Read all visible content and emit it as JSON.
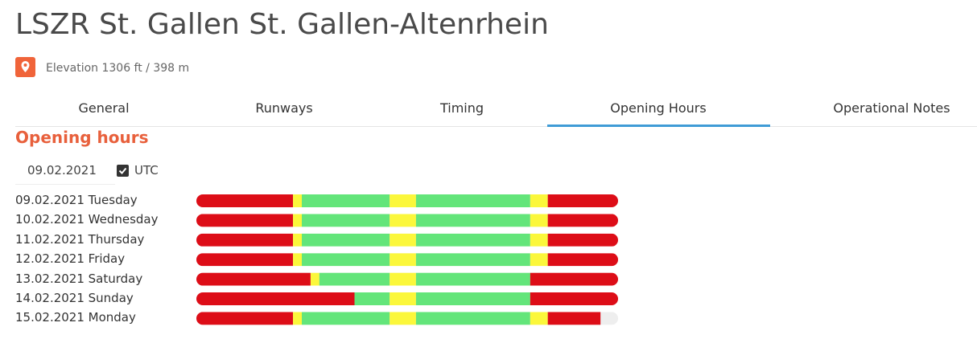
{
  "header": {
    "title": "LSZR St. Gallen St. Gallen-Altenrhein",
    "elevation": "Elevation 1306 ft / 398 m"
  },
  "tabs": [
    "General",
    "Runways",
    "Timing",
    "Opening Hours",
    "Operational Notes"
  ],
  "active_tab": 3,
  "section": {
    "title": "Opening hours",
    "date": "09.02.2021",
    "utc_label": "UTC",
    "utc_checked": true
  },
  "schedule": {
    "day_hours": 24,
    "empty_color": "#eeeeee",
    "days": [
      {
        "label": "09.02.2021 Tuesday",
        "segments": [
          {
            "color": "#dd0d17",
            "hours": 5.5
          },
          {
            "color": "#fbf73b",
            "hours": 0.5
          },
          {
            "color": "#63e57a",
            "hours": 5
          },
          {
            "color": "#fbf73b",
            "hours": 1.5
          },
          {
            "color": "#63e57a",
            "hours": 6.5
          },
          {
            "color": "#fbf73b",
            "hours": 1
          },
          {
            "color": "#dd0d17",
            "hours": 4
          }
        ]
      },
      {
        "label": "10.02.2021 Wednesday",
        "segments": [
          {
            "color": "#dd0d17",
            "hours": 5.5
          },
          {
            "color": "#fbf73b",
            "hours": 0.5
          },
          {
            "color": "#63e57a",
            "hours": 5
          },
          {
            "color": "#fbf73b",
            "hours": 1.5
          },
          {
            "color": "#63e57a",
            "hours": 6.5
          },
          {
            "color": "#fbf73b",
            "hours": 1
          },
          {
            "color": "#dd0d17",
            "hours": 4
          }
        ]
      },
      {
        "label": "11.02.2021 Thursday",
        "segments": [
          {
            "color": "#dd0d17",
            "hours": 5.5
          },
          {
            "color": "#fbf73b",
            "hours": 0.5
          },
          {
            "color": "#63e57a",
            "hours": 5
          },
          {
            "color": "#fbf73b",
            "hours": 1.5
          },
          {
            "color": "#63e57a",
            "hours": 6.5
          },
          {
            "color": "#fbf73b",
            "hours": 1
          },
          {
            "color": "#dd0d17",
            "hours": 4
          }
        ]
      },
      {
        "label": "12.02.2021 Friday",
        "segments": [
          {
            "color": "#dd0d17",
            "hours": 5.5
          },
          {
            "color": "#fbf73b",
            "hours": 0.5
          },
          {
            "color": "#63e57a",
            "hours": 5
          },
          {
            "color": "#fbf73b",
            "hours": 1.5
          },
          {
            "color": "#63e57a",
            "hours": 6.5
          },
          {
            "color": "#fbf73b",
            "hours": 1
          },
          {
            "color": "#dd0d17",
            "hours": 4
          }
        ]
      },
      {
        "label": "13.02.2021 Saturday",
        "segments": [
          {
            "color": "#dd0d17",
            "hours": 6.5
          },
          {
            "color": "#fbf73b",
            "hours": 0.5
          },
          {
            "color": "#63e57a",
            "hours": 4
          },
          {
            "color": "#fbf73b",
            "hours": 1.5
          },
          {
            "color": "#63e57a",
            "hours": 6.5
          },
          {
            "color": "#dd0d17",
            "hours": 5
          }
        ]
      },
      {
        "label": "14.02.2021 Sunday",
        "segments": [
          {
            "color": "#dd0d17",
            "hours": 9
          },
          {
            "color": "#63e57a",
            "hours": 2
          },
          {
            "color": "#fbf73b",
            "hours": 1.5
          },
          {
            "color": "#63e57a",
            "hours": 6.5
          },
          {
            "color": "#dd0d17",
            "hours": 5
          }
        ]
      },
      {
        "label": "15.02.2021 Monday",
        "segments": [
          {
            "color": "#dd0d17",
            "hours": 5.5
          },
          {
            "color": "#fbf73b",
            "hours": 0.5
          },
          {
            "color": "#63e57a",
            "hours": 5
          },
          {
            "color": "#fbf73b",
            "hours": 1.5
          },
          {
            "color": "#63e57a",
            "hours": 6.5
          },
          {
            "color": "#fbf73b",
            "hours": 1
          },
          {
            "color": "#dd0d17",
            "hours": 3
          }
        ]
      }
    ]
  }
}
